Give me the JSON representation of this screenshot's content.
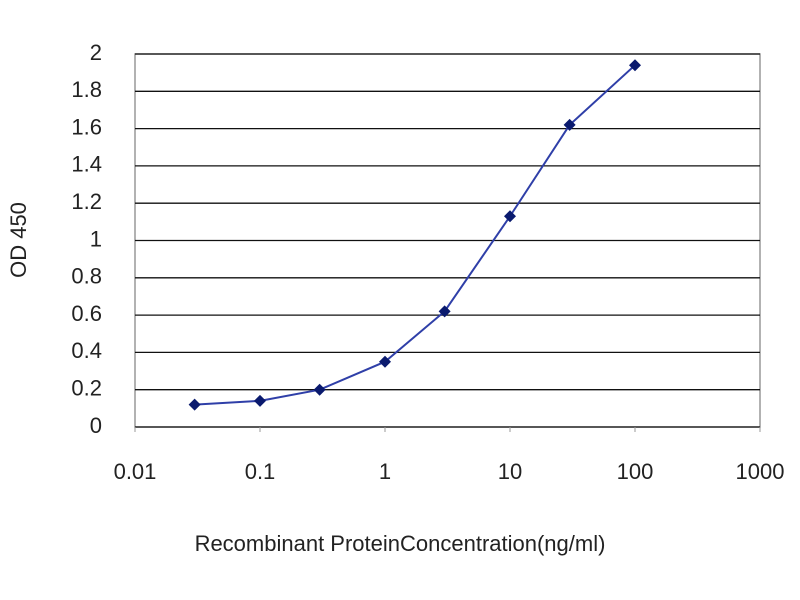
{
  "chart_data": {
    "type": "line",
    "x_label": "Recombinant ProteinConcentration(ng/ml)",
    "y_label": "OD 450",
    "x": [
      0.03,
      0.1,
      0.3,
      1,
      3,
      10,
      30,
      100
    ],
    "series": [
      {
        "color": "#2f3fa8",
        "marker_color": "#0a1a6e",
        "values": [
          0.12,
          0.14,
          0.2,
          0.35,
          0.62,
          1.13,
          1.62,
          1.94
        ]
      }
    ],
    "xscale": "log",
    "xlim": [
      0.01,
      1000
    ],
    "xticks": [
      0.01,
      0.1,
      1,
      10,
      100,
      1000
    ],
    "ylim": [
      0,
      2
    ],
    "yticks": [
      0,
      0.2,
      0.4,
      0.6,
      0.8,
      1,
      1.2,
      1.4,
      1.6,
      1.8,
      2
    ],
    "grid": true
  }
}
